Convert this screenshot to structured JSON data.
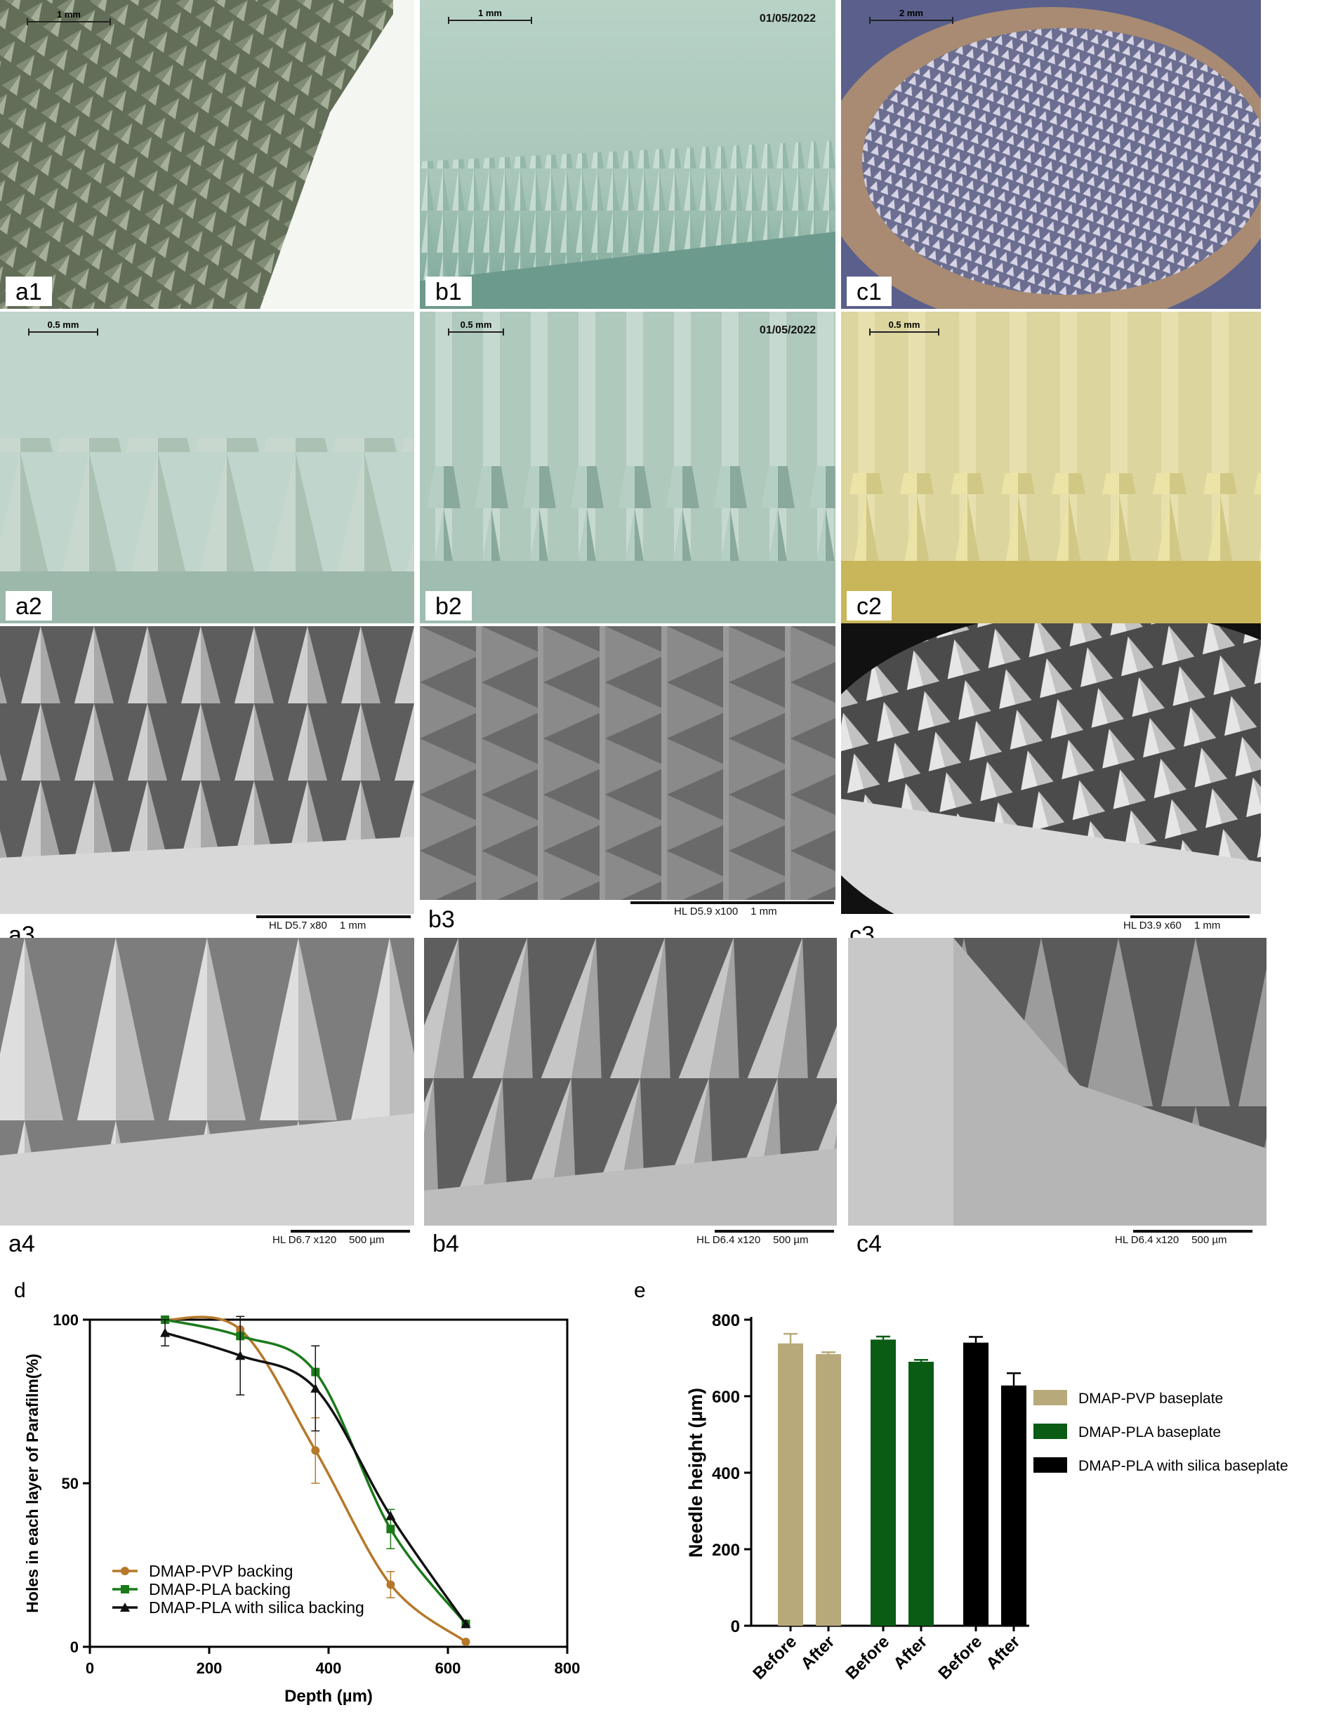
{
  "panels": {
    "a1": {
      "label": "a1",
      "scale": "1 mm"
    },
    "b1": {
      "label": "b1",
      "scale": "1 mm",
      "date": "01/05/2022"
    },
    "c1": {
      "label": "c1",
      "scale": "2 mm"
    },
    "a2": {
      "label": "a2",
      "scale": "0.5 mm"
    },
    "b2": {
      "label": "b2",
      "scale": "0.5 mm",
      "date": "01/05/2022"
    },
    "c2": {
      "label": "c2",
      "scale": "0.5 mm"
    },
    "a3": {
      "label": "a3",
      "sem": "HL   D5.7   x80",
      "sem_scale": "1 mm"
    },
    "b3": {
      "label": "b3",
      "sem": "HL   D5.9   x100",
      "sem_scale": "1 mm"
    },
    "c3": {
      "label": "c3",
      "sem": "HL   D3.9   x60",
      "sem_scale": "1 mm"
    },
    "a4": {
      "label": "a4",
      "sem": "HL   D6.7   x120",
      "sem_scale": "500 µm"
    },
    "b4": {
      "label": "b4",
      "sem": "HL   D6.4   x120",
      "sem_scale": "500 µm"
    },
    "c4": {
      "label": "c4",
      "sem": "HL   D6.4   x120",
      "sem_scale": "500 µm"
    }
  },
  "chart_data": [
    {
      "panel": "d",
      "type": "line",
      "xlabel": "Depth (µm)",
      "ylabel": "Holes in each layer of Parafilm(%)",
      "xlim": [
        0,
        800
      ],
      "ylim": [
        0,
        100
      ],
      "xticks": [
        "0",
        "200",
        "400",
        "600",
        "800"
      ],
      "yticks": [
        "0",
        "50",
        "100"
      ],
      "legend": "bottom-left",
      "series": [
        {
          "name": "DMAP-PVP backing",
          "color": "#b5782a",
          "marker": "circle",
          "x": [
            126,
            252,
            378,
            504,
            630
          ],
          "y": [
            100,
            97,
            60,
            19,
            1.5
          ],
          "err": [
            0,
            0,
            10,
            4,
            0
          ]
        },
        {
          "name": "DMAP-PLA backing",
          "color": "#1a7a1a",
          "marker": "square",
          "x": [
            126,
            252,
            378,
            504,
            630
          ],
          "y": [
            100,
            95,
            84,
            36,
            7
          ],
          "err": [
            0,
            0,
            0,
            6,
            0
          ]
        },
        {
          "name": "DMAP-PLA with silica backing",
          "color": "#111111",
          "marker": "triangle",
          "x": [
            126,
            252,
            378,
            504,
            630
          ],
          "y": [
            96,
            89,
            79,
            40,
            7
          ],
          "err": [
            4,
            12,
            13,
            0,
            0
          ]
        }
      ]
    },
    {
      "panel": "e",
      "type": "bar",
      "ylabel": "Needle height (µm)",
      "ylim": [
        0,
        800
      ],
      "yticks": [
        "0",
        "200",
        "400",
        "600",
        "800"
      ],
      "categories": [
        "Before",
        "After",
        "Before",
        "After",
        "Before",
        "After"
      ],
      "values": [
        738,
        710,
        748,
        690,
        740,
        628
      ],
      "errors": [
        25,
        5,
        8,
        5,
        15,
        32
      ],
      "colors": [
        "#b7a97a",
        "#b7a97a",
        "#0a5c14",
        "#0a5c14",
        "#000000",
        "#000000"
      ],
      "legend": "right",
      "legend_entries": [
        {
          "name": "DMAP-PVP baseplate",
          "color": "#b7a97a"
        },
        {
          "name": "DMAP-PLA baseplate",
          "color": "#0a5c14"
        },
        {
          "name": "DMAP-PLA with silica baseplate",
          "color": "#000000"
        }
      ]
    }
  ],
  "chart_labels": {
    "d": "d",
    "e": "e"
  }
}
